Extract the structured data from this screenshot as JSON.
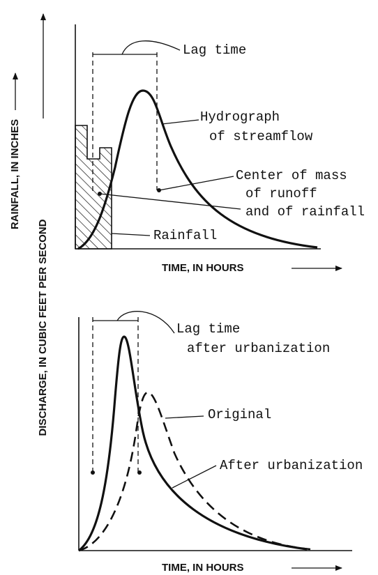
{
  "axes": {
    "rainfall_label": "RAINFALL, IN INCHES",
    "discharge_label": "DISCHARGE, IN CUBIC FEET PER SECOND"
  },
  "top_panel": {
    "lag_time": "Lag time",
    "hydrograph": [
      "Hydrograph",
      "of streamflow"
    ],
    "center_of_mass": [
      "Center of mass",
      "of runoff",
      "and of rainfall"
    ],
    "rainfall": "Rainfall",
    "x_axis_label": "TIME, IN HOURS"
  },
  "bottom_panel": {
    "lag_time": [
      "Lag time",
      "after urbanization"
    ],
    "original": "Original",
    "after_urbanization": "After urbanization",
    "x_axis_label": "TIME, IN HOURS"
  }
}
